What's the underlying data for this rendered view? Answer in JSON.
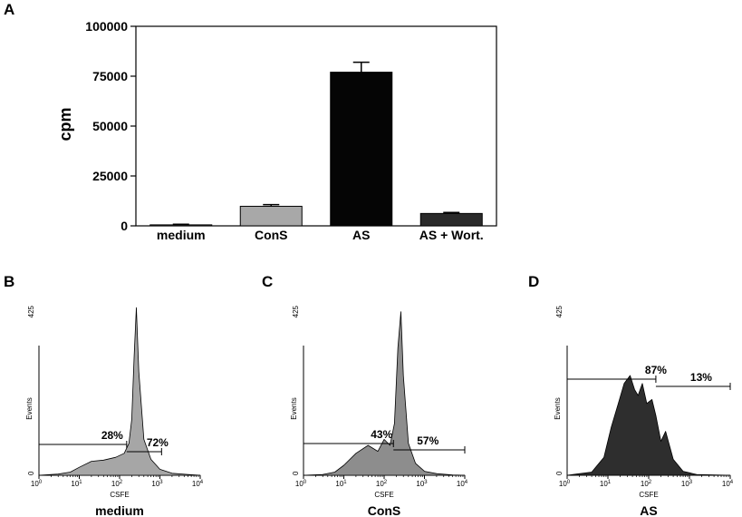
{
  "chart_data": [
    {
      "panel": "A",
      "type": "bar",
      "ylabel": "cpm",
      "ylim": [
        0,
        100000
      ],
      "yticks": [
        "0",
        "25000",
        "50000",
        "75000",
        "100000"
      ],
      "yticks_values": [
        0,
        25000,
        50000,
        75000,
        100000
      ],
      "categories": [
        "medium",
        "ConS",
        "AS",
        "AS + Wort."
      ],
      "values": [
        500,
        9800,
        77000,
        6200
      ],
      "errors": [
        300,
        800,
        5000,
        500
      ],
      "colors": [
        "#9a9a9a",
        "#a8a8a8",
        "#050505",
        "#2a2a2a"
      ]
    },
    {
      "panel": "B",
      "type": "area",
      "xlabel": "CSFE",
      "ylabel": "Events",
      "sublabel": "medium",
      "ytop": "425",
      "ybottom": "0",
      "xscale": "log",
      "xlim": [
        1,
        10000
      ],
      "xticks_exp": [
        "0",
        "1",
        "2",
        "3",
        "4"
      ],
      "fill": "#a6a6a6",
      "x": [
        1,
        3,
        6,
        10,
        20,
        40,
        80,
        130,
        170,
        200,
        230,
        260,
        300,
        400,
        600,
        1000,
        2000,
        5000,
        10000
      ],
      "y": [
        0,
        3,
        8,
        20,
        35,
        38,
        45,
        55,
        80,
        140,
        300,
        420,
        260,
        90,
        40,
        15,
        5,
        2,
        0
      ],
      "gates": [
        {
          "label": "28%",
          "from": 1,
          "to": 150
        },
        {
          "label": "72%",
          "from": 150,
          "to": 1100
        }
      ]
    },
    {
      "panel": "C",
      "type": "area",
      "xlabel": "CSFE",
      "ylabel": "Events",
      "sublabel": "ConS",
      "ytop": "425",
      "ybottom": "0",
      "xscale": "log",
      "xlim": [
        1,
        10000
      ],
      "xticks_exp": [
        "0",
        "1",
        "2",
        "3",
        "4"
      ],
      "fill": "#8d8d8d",
      "x": [
        1,
        3,
        6,
        10,
        20,
        40,
        70,
        100,
        140,
        180,
        220,
        260,
        300,
        400,
        600,
        1000,
        2000,
        5000,
        10000
      ],
      "y": [
        0,
        2,
        8,
        25,
        55,
        75,
        60,
        90,
        75,
        130,
        320,
        410,
        250,
        80,
        30,
        10,
        4,
        1,
        0
      ],
      "gates": [
        {
          "label": "43%",
          "from": 1,
          "to": 170
        },
        {
          "label": "57%",
          "from": 170,
          "to": 10000
        }
      ]
    },
    {
      "panel": "D",
      "type": "area",
      "xlabel": "CSFE",
      "ylabel": "Events",
      "sublabel": "AS",
      "ytop": "425",
      "ybottom": "0",
      "xscale": "log",
      "xlim": [
        1,
        10000
      ],
      "xticks_exp": [
        "0",
        "1",
        "2",
        "3",
        "4"
      ],
      "fill": "#2e2e2e",
      "x": [
        1,
        4,
        8,
        12,
        18,
        25,
        35,
        45,
        55,
        70,
        90,
        120,
        150,
        200,
        260,
        400,
        700,
        1500,
        10000
      ],
      "y": [
        0,
        8,
        45,
        120,
        180,
        230,
        250,
        215,
        200,
        230,
        180,
        190,
        150,
        85,
        110,
        40,
        10,
        2,
        0
      ],
      "gates": [
        {
          "label": "87%",
          "from": 1,
          "to": 150
        },
        {
          "label": "13%",
          "from": 150,
          "to": 10000
        }
      ]
    }
  ]
}
